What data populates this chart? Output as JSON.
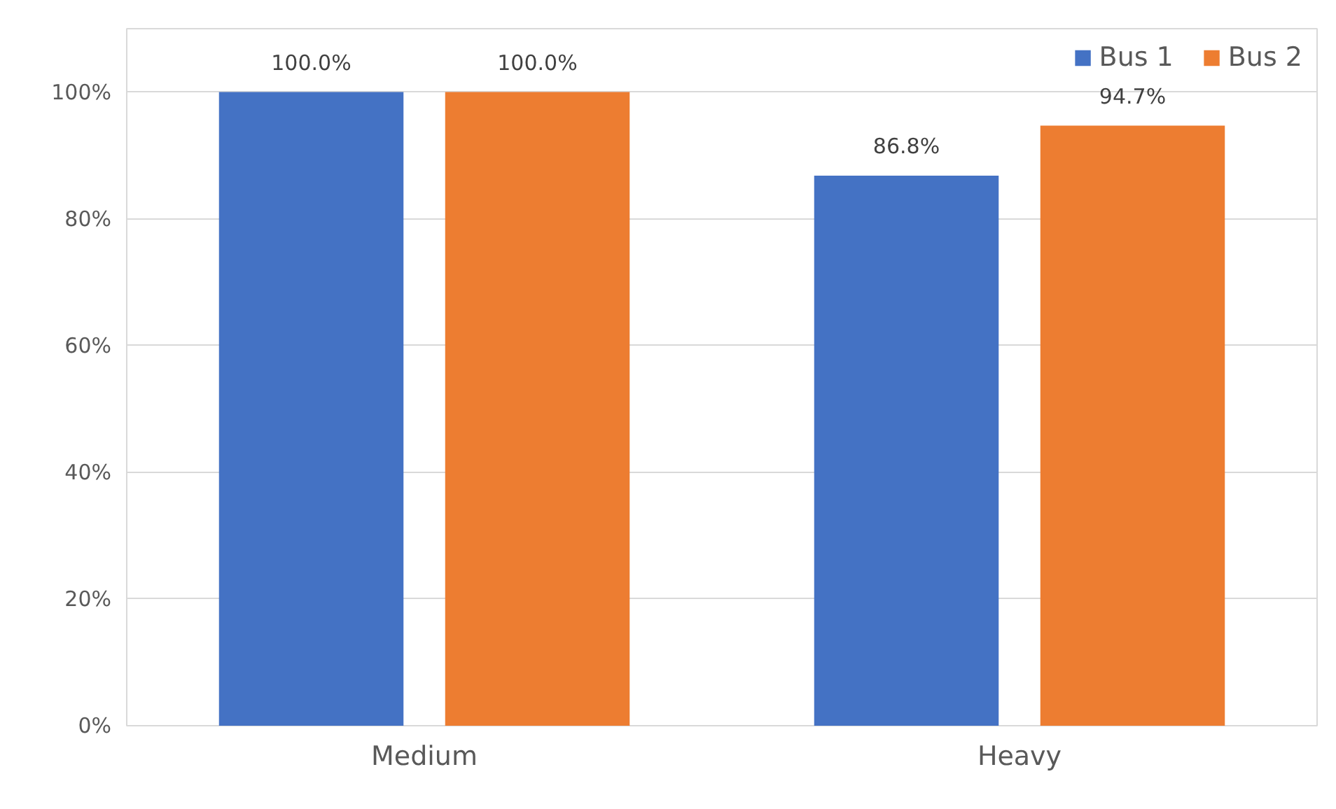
{
  "chart_data": {
    "type": "bar",
    "categories": [
      "Medium",
      "Heavy"
    ],
    "series": [
      {
        "name": "Bus 1",
        "color": "#4472c4",
        "values": [
          100.0,
          86.8
        ],
        "value_labels": [
          "100.0%",
          "86.8%"
        ]
      },
      {
        "name": "Bus 2",
        "color": "#ed7d31",
        "values": [
          100.0,
          94.7
        ],
        "value_labels": [
          "100.0%",
          "94.7%"
        ]
      }
    ],
    "ylim": [
      0,
      110
    ],
    "yticks": [
      {
        "value": 0,
        "label": "0%"
      },
      {
        "value": 20,
        "label": "20%"
      },
      {
        "value": 40,
        "label": "40%"
      },
      {
        "value": 60,
        "label": "60%"
      },
      {
        "value": 80,
        "label": "80%"
      },
      {
        "value": 100,
        "label": "100%"
      }
    ],
    "grid": "y",
    "legend": "top right"
  }
}
